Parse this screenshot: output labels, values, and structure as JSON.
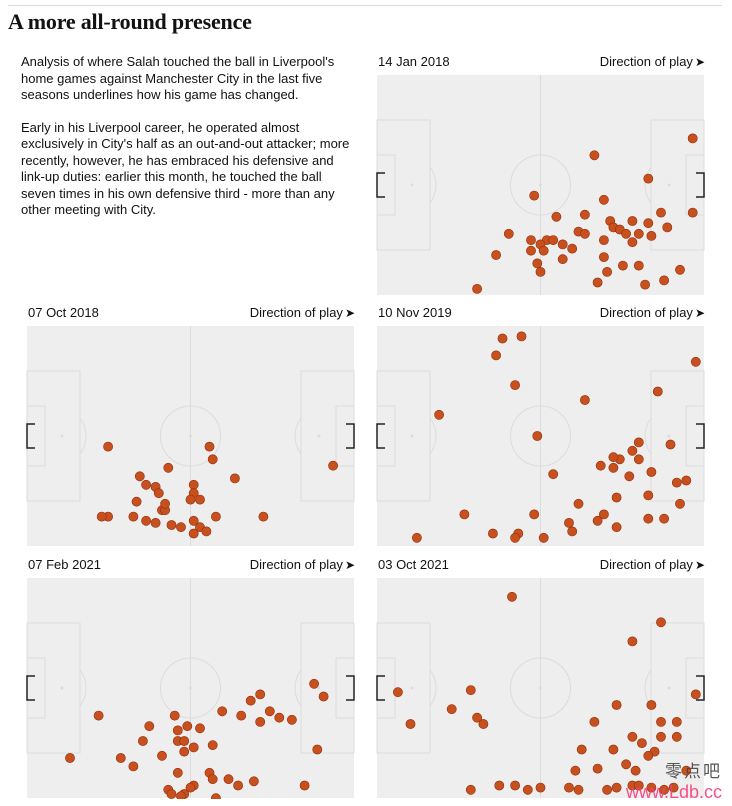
{
  "title": "A more all-round presence",
  "intro": {
    "p1": "Analysis of where Salah touched the ball in Liverpool's home games against Manchester City in the last five seasons underlines how his game has changed.",
    "p2": "Early in his Liverpool career, he operated almost exclusively in City's half as an out-and-out attacker; more recently, however, he has embraced his defensive and link-up duties: earlier this month, he touched the ball seven times in his own defensive third - more than any other meeting with City."
  },
  "direction_label": "Direction of play",
  "direction_arrow": "➤",
  "colors": {
    "pitch": "#eeeeee",
    "lines": "#ffffff",
    "dot": "#c8501e",
    "dot_stroke": "#8f2f0a"
  },
  "watermark": {
    "line1": "零点吧",
    "line2": "www.Ldb.cc"
  },
  "chart_data": [
    {
      "type": "scatter",
      "date": "14 Jan 2018",
      "xlim": [
        0,
        100
      ],
      "ylim": [
        0,
        100
      ],
      "points": [
        [
          98,
          72
        ],
        [
          67,
          64
        ],
        [
          84,
          53
        ],
        [
          48,
          45
        ],
        [
          88,
          37
        ],
        [
          98,
          37
        ],
        [
          70,
          43
        ],
        [
          64,
          36
        ],
        [
          55,
          35
        ],
        [
          72,
          33
        ],
        [
          79,
          33
        ],
        [
          73,
          30
        ],
        [
          84,
          32
        ],
        [
          90,
          30
        ],
        [
          62,
          28
        ],
        [
          75,
          29
        ],
        [
          77,
          27
        ],
        [
          81,
          27
        ],
        [
          40,
          27
        ],
        [
          47,
          24
        ],
        [
          52,
          24
        ],
        [
          54,
          24
        ],
        [
          50,
          22
        ],
        [
          57,
          22
        ],
        [
          64,
          27
        ],
        [
          70,
          24
        ],
        [
          85,
          26
        ],
        [
          60,
          20
        ],
        [
          51,
          19
        ],
        [
          47,
          19
        ],
        [
          79,
          23
        ],
        [
          36,
          17
        ],
        [
          70,
          16
        ],
        [
          49,
          13
        ],
        [
          57,
          15
        ],
        [
          76,
          12
        ],
        [
          81,
          12
        ],
        [
          94,
          10
        ],
        [
          71,
          9
        ],
        [
          50,
          9
        ],
        [
          68,
          4
        ],
        [
          89,
          5
        ],
        [
          83,
          3
        ],
        [
          30,
          1
        ]
      ]
    },
    {
      "type": "scatter",
      "date": "07 Oct 2018",
      "xlim": [
        0,
        100
      ],
      "ylim": [
        0,
        100
      ],
      "points": [
        [
          24,
          45
        ],
        [
          57,
          39
        ],
        [
          56,
          45
        ],
        [
          43,
          35
        ],
        [
          95,
          36
        ],
        [
          34,
          31
        ],
        [
          64,
          30
        ],
        [
          36,
          27
        ],
        [
          51,
          27
        ],
        [
          39,
          26
        ],
        [
          40,
          23
        ],
        [
          51,
          23
        ],
        [
          41,
          15
        ],
        [
          42,
          15
        ],
        [
          42,
          18
        ],
        [
          33,
          19
        ],
        [
          53,
          20
        ],
        [
          50,
          20
        ],
        [
          24,
          12
        ],
        [
          22,
          12
        ],
        [
          32,
          12
        ],
        [
          36,
          10
        ],
        [
          51,
          10
        ],
        [
          39,
          9
        ],
        [
          44,
          8
        ],
        [
          47,
          7
        ],
        [
          53,
          7
        ],
        [
          51,
          4
        ],
        [
          55,
          5
        ],
        [
          58,
          12
        ],
        [
          73,
          12
        ]
      ]
    },
    {
      "type": "scatter",
      "date": "10 Nov 2019",
      "xlim": [
        0,
        100
      ],
      "ylim": [
        0,
        100
      ],
      "points": [
        [
          44,
          97
        ],
        [
          38,
          96
        ],
        [
          99,
          85
        ],
        [
          36,
          88
        ],
        [
          42,
          74
        ],
        [
          18,
          60
        ],
        [
          64,
          67
        ],
        [
          49,
          50
        ],
        [
          87,
          71
        ],
        [
          81,
          47
        ],
        [
          91,
          46
        ],
        [
          79,
          43
        ],
        [
          75,
          39
        ],
        [
          69,
          36
        ],
        [
          54,
          32
        ],
        [
          73,
          40
        ],
        [
          73,
          35
        ],
        [
          85,
          33
        ],
        [
          78,
          31
        ],
        [
          81,
          39
        ],
        [
          96,
          29
        ],
        [
          93,
          28
        ],
        [
          84,
          22
        ],
        [
          74,
          21
        ],
        [
          62,
          18
        ],
        [
          94,
          18
        ],
        [
          84,
          11
        ],
        [
          89,
          11
        ],
        [
          59,
          9
        ],
        [
          70,
          13
        ],
        [
          68,
          10
        ],
        [
          74,
          7
        ],
        [
          26,
          13
        ],
        [
          48,
          13
        ],
        [
          60,
          5
        ],
        [
          35,
          4
        ],
        [
          43,
          4
        ],
        [
          51,
          2
        ],
        [
          42,
          2
        ],
        [
          11,
          2
        ]
      ]
    },
    {
      "type": "scatter",
      "date": "07 Feb 2021",
      "xlim": [
        0,
        100
      ],
      "ylim": [
        0,
        100
      ],
      "points": [
        [
          69,
          44
        ],
        [
          72,
          47
        ],
        [
          89,
          52
        ],
        [
          92,
          46
        ],
        [
          75,
          39
        ],
        [
          60,
          39
        ],
        [
          66,
          37
        ],
        [
          45,
          37
        ],
        [
          21,
          37
        ],
        [
          78,
          36
        ],
        [
          82,
          35
        ],
        [
          72,
          34
        ],
        [
          37,
          32
        ],
        [
          49,
          32
        ],
        [
          53,
          31
        ],
        [
          46,
          30
        ],
        [
          46,
          25
        ],
        [
          35,
          25
        ],
        [
          48,
          25
        ],
        [
          57,
          23
        ],
        [
          51,
          22
        ],
        [
          90,
          21
        ],
        [
          48,
          20
        ],
        [
          41,
          18
        ],
        [
          28,
          17
        ],
        [
          12,
          17
        ],
        [
          32,
          13
        ],
        [
          46,
          10
        ],
        [
          56,
          10
        ],
        [
          57,
          7
        ],
        [
          62,
          7
        ],
        [
          70,
          6
        ],
        [
          65,
          4
        ],
        [
          86,
          4
        ],
        [
          51,
          4
        ],
        [
          50,
          3
        ],
        [
          43,
          2
        ],
        [
          44,
          0
        ],
        [
          48,
          0
        ],
        [
          47,
          -1
        ],
        [
          58,
          -2
        ]
      ]
    },
    {
      "type": "scatter",
      "date": "03 Oct 2021",
      "xlim": [
        0,
        100
      ],
      "ylim": [
        0,
        100
      ],
      "points": [
        [
          41,
          93
        ],
        [
          88,
          81
        ],
        [
          79,
          72
        ],
        [
          28,
          49
        ],
        [
          5,
          48
        ],
        [
          99,
          47
        ],
        [
          85,
          42
        ],
        [
          74,
          42
        ],
        [
          22,
          40
        ],
        [
          67,
          34
        ],
        [
          9,
          33
        ],
        [
          30,
          36
        ],
        [
          32,
          33
        ],
        [
          88,
          34
        ],
        [
          93,
          34
        ],
        [
          88,
          27
        ],
        [
          93,
          27
        ],
        [
          79,
          27
        ],
        [
          82,
          24
        ],
        [
          63,
          21
        ],
        [
          73,
          21
        ],
        [
          86,
          20
        ],
        [
          84,
          18
        ],
        [
          77,
          14
        ],
        [
          96,
          11
        ],
        [
          80,
          11
        ],
        [
          68,
          12
        ],
        [
          61,
          11
        ],
        [
          28,
          2
        ],
        [
          37,
          4
        ],
        [
          42,
          4
        ],
        [
          46,
          2
        ],
        [
          50,
          3
        ],
        [
          74,
          3
        ],
        [
          79,
          4
        ],
        [
          81,
          4
        ],
        [
          85,
          3
        ],
        [
          92,
          3
        ],
        [
          71,
          2
        ],
        [
          89,
          2
        ],
        [
          59,
          3
        ],
        [
          62,
          2
        ]
      ]
    }
  ]
}
